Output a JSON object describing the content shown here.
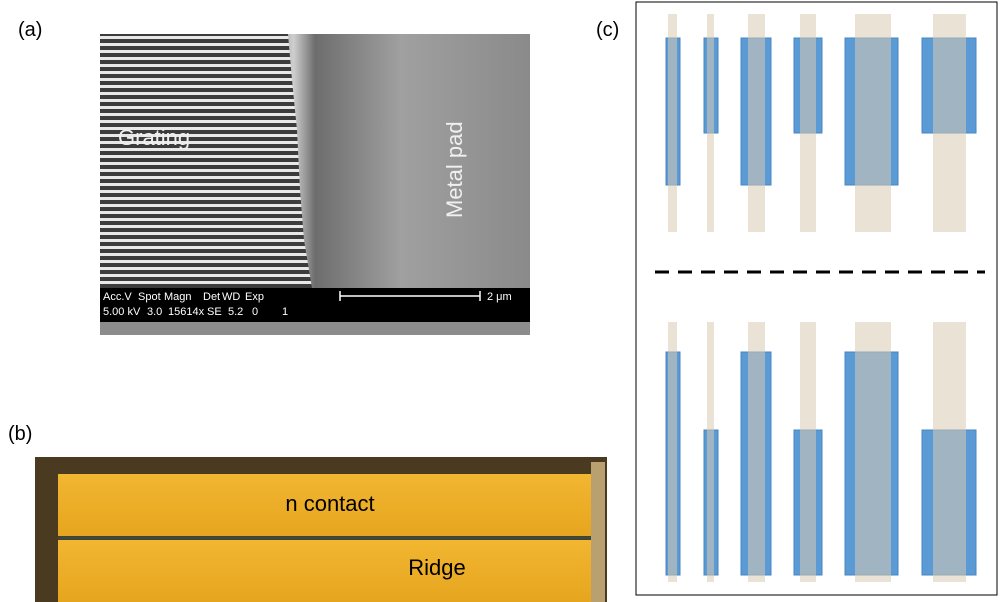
{
  "panel_a": {
    "label": "(a)",
    "grating": "Grating",
    "metal_pad": "Metal pad",
    "info_header": [
      "Acc.V",
      "Spot",
      "Magn",
      "Det",
      "WD",
      "Exp"
    ],
    "info_values": [
      "5.00 kV",
      "3.0",
      "15614x",
      "SE",
      "5.2",
      "0",
      "1"
    ],
    "scale_bar": "2 μm"
  },
  "panel_b": {
    "label": "(b)",
    "n_contact": "n contact",
    "ridge": "Ridge"
  },
  "panel_c": {
    "label": "(c)"
  }
}
